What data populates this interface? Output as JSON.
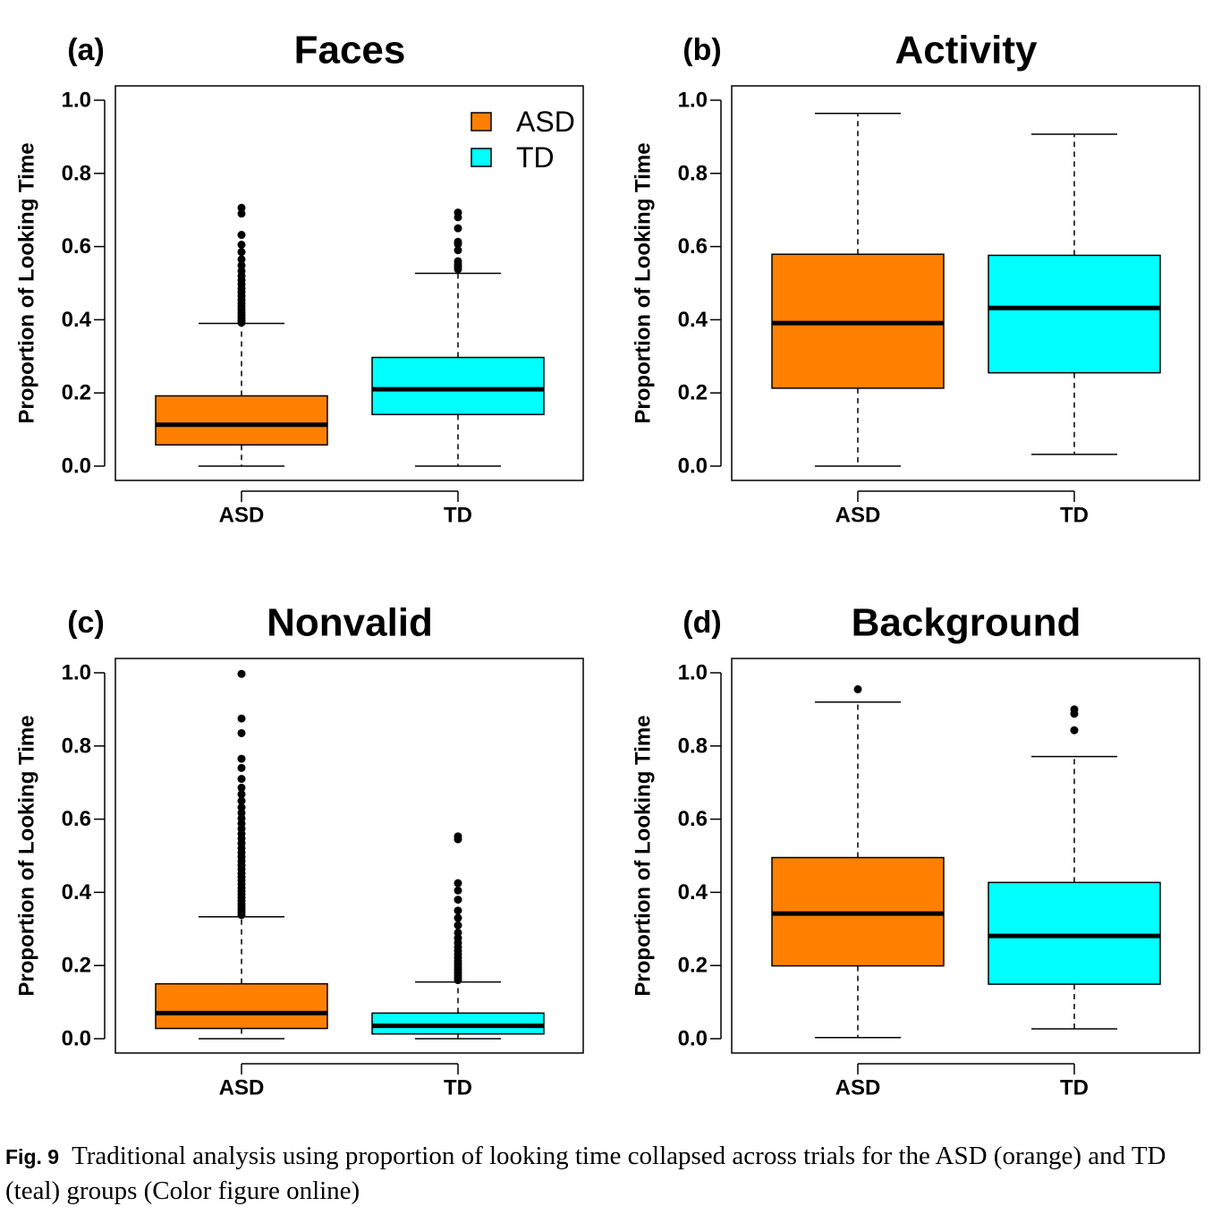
{
  "colors": {
    "ASD": "#ff8000",
    "TD": "#00ffff",
    "ink": "#000000"
  },
  "legend": [
    {
      "label": "ASD",
      "color": "#ff8000"
    },
    {
      "label": "TD",
      "color": "#00ffff"
    }
  ],
  "caption": {
    "label": "Fig. 9",
    "text": "Traditional analysis using proportion of looking time collapsed across trials for the ASD (orange) and TD (teal) groups (Color figure online)"
  },
  "chart_data": [
    {
      "type": "box",
      "panel": "(a)",
      "title": "Faces",
      "ylabel": "Proportion of Looking Time",
      "ylim": [
        0,
        1
      ],
      "yticks": [
        "0.0",
        "0.2",
        "0.4",
        "0.6",
        "0.8",
        "1.0"
      ],
      "legend": true,
      "groups": [
        {
          "name": "ASD",
          "min": 0.0,
          "q1": 0.058,
          "median": 0.113,
          "q3": 0.192,
          "max": 0.39,
          "outliers": [
            0.392,
            0.398,
            0.405,
            0.412,
            0.42,
            0.428,
            0.436,
            0.445,
            0.455,
            0.465,
            0.475,
            0.485,
            0.497,
            0.508,
            0.52,
            0.533,
            0.548,
            0.565,
            0.585,
            0.605,
            0.632,
            0.69,
            0.706
          ]
        },
        {
          "name": "TD",
          "min": 0.0,
          "q1": 0.141,
          "median": 0.21,
          "q3": 0.297,
          "max": 0.527,
          "outliers": [
            0.538,
            0.545,
            0.552,
            0.56,
            0.59,
            0.607,
            0.613,
            0.65,
            0.68,
            0.693
          ]
        }
      ]
    },
    {
      "type": "box",
      "panel": "(b)",
      "title": "Activity",
      "ylabel": "Proportion of Looking Time",
      "ylim": [
        0,
        1
      ],
      "yticks": [
        "0.0",
        "0.2",
        "0.4",
        "0.6",
        "0.8",
        "1.0"
      ],
      "legend": false,
      "groups": [
        {
          "name": "ASD",
          "min": 0.0,
          "q1": 0.213,
          "median": 0.391,
          "q3": 0.579,
          "max": 0.964,
          "outliers": []
        },
        {
          "name": "TD",
          "min": 0.032,
          "q1": 0.255,
          "median": 0.432,
          "q3": 0.576,
          "max": 0.907,
          "outliers": []
        }
      ]
    },
    {
      "type": "box",
      "panel": "(c)",
      "title": "Nonvalid",
      "ylabel": "Proportion of Looking Time",
      "ylim": [
        0,
        1
      ],
      "yticks": [
        "0.0",
        "0.2",
        "0.4",
        "0.6",
        "0.8",
        "1.0"
      ],
      "legend": false,
      "groups": [
        {
          "name": "ASD",
          "min": 0.0,
          "q1": 0.028,
          "median": 0.07,
          "q3": 0.15,
          "max": 0.333,
          "outliers": [
            0.338,
            0.345,
            0.352,
            0.36,
            0.368,
            0.376,
            0.385,
            0.394,
            0.403,
            0.412,
            0.422,
            0.432,
            0.442,
            0.452,
            0.463,
            0.474,
            0.485,
            0.497,
            0.509,
            0.521,
            0.534,
            0.547,
            0.56,
            0.574,
            0.588,
            0.602,
            0.617,
            0.632,
            0.65,
            0.668,
            0.686,
            0.71,
            0.74,
            0.765,
            0.835,
            0.875,
            0.997
          ]
        },
        {
          "name": "TD",
          "min": 0.0,
          "q1": 0.013,
          "median": 0.035,
          "q3": 0.07,
          "max": 0.155,
          "outliers": [
            0.16,
            0.167,
            0.174,
            0.181,
            0.188,
            0.196,
            0.204,
            0.212,
            0.221,
            0.23,
            0.24,
            0.25,
            0.262,
            0.275,
            0.29,
            0.31,
            0.33,
            0.35,
            0.38,
            0.405,
            0.425,
            0.545,
            0.553
          ]
        }
      ]
    },
    {
      "type": "box",
      "panel": "(d)",
      "title": "Background",
      "ylabel": "Proportion of Looking Time",
      "ylim": [
        0,
        1
      ],
      "yticks": [
        "0.0",
        "0.2",
        "0.4",
        "0.6",
        "0.8",
        "1.0"
      ],
      "legend": false,
      "groups": [
        {
          "name": "ASD",
          "min": 0.003,
          "q1": 0.199,
          "median": 0.342,
          "q3": 0.495,
          "max": 0.92,
          "outliers": [
            0.955
          ]
        },
        {
          "name": "TD",
          "min": 0.027,
          "q1": 0.149,
          "median": 0.281,
          "q3": 0.427,
          "max": 0.771,
          "outliers": [
            0.843,
            0.888,
            0.9
          ]
        }
      ]
    }
  ]
}
